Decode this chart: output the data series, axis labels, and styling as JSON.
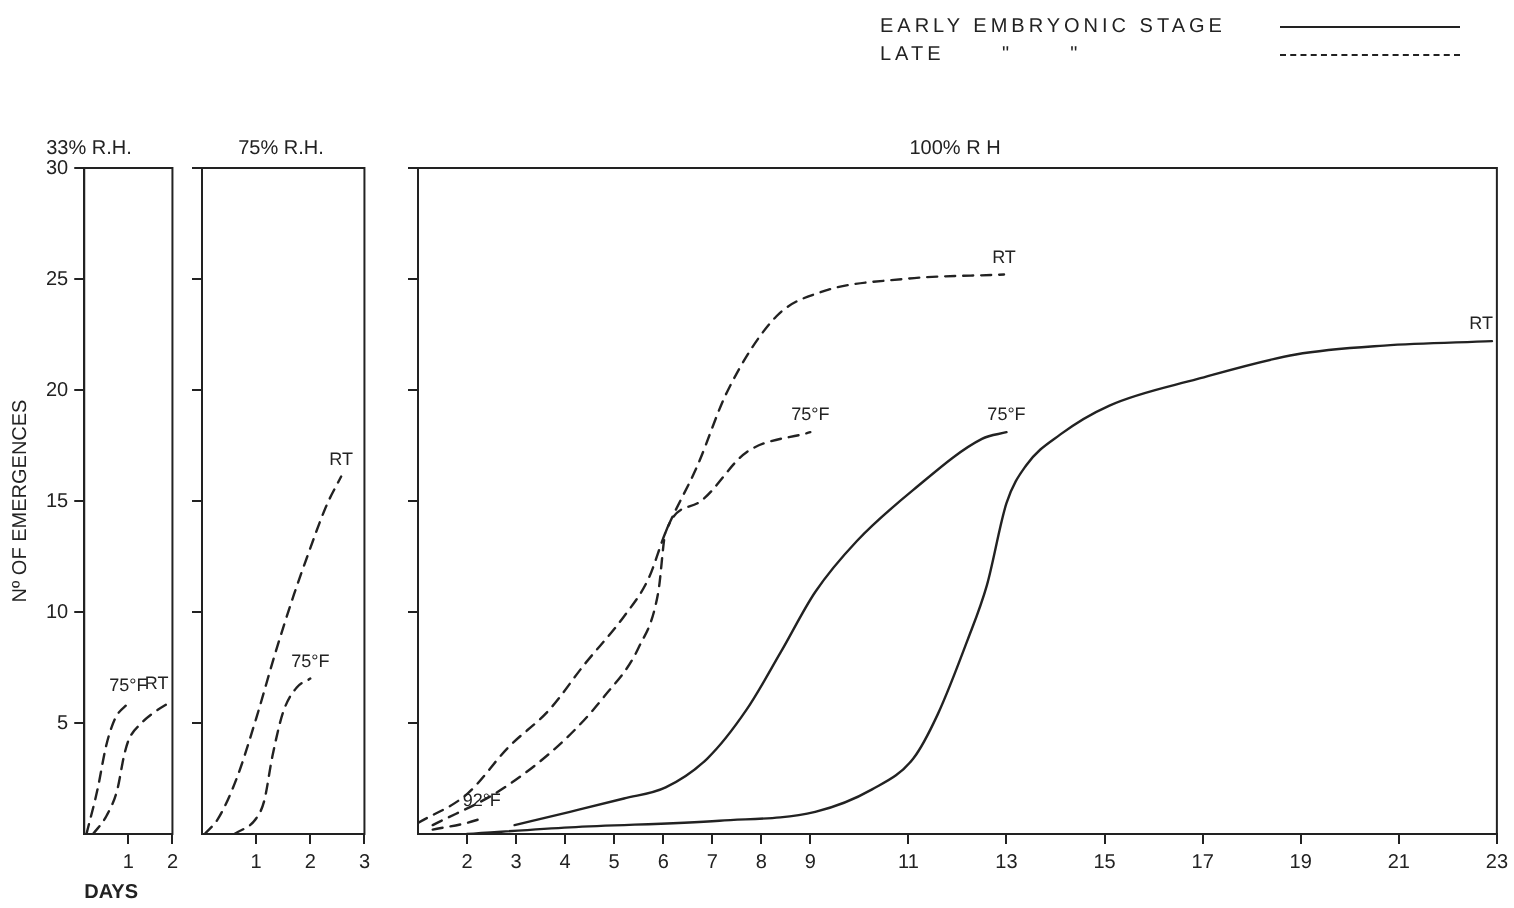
{
  "chart_data": [
    {
      "type": "line",
      "title": "33% R.H.",
      "xlabel": "DAYS",
      "ylabel": "Nº OF EMERGENCES",
      "xlim": [
        0,
        2
      ],
      "xticks": [
        1,
        2
      ],
      "ylim": [
        0,
        30
      ],
      "yticks": [
        5,
        10,
        15,
        20,
        25,
        30
      ],
      "grid": false,
      "legend": false,
      "series": [
        {
          "name": "75°F",
          "color": "#222222",
          "line_style": "dashed",
          "x": [
            0.05,
            0.3,
            0.5,
            0.7,
            1.0
          ],
          "values": [
            0,
            2,
            4,
            5.2,
            5.9
          ]
        },
        {
          "name": "RT",
          "color": "#222222",
          "line_style": "dashed",
          "x": [
            0.2,
            0.5,
            0.75,
            0.9,
            1.0,
            1.3,
            1.6,
            2.0
          ],
          "values": [
            0,
            0.8,
            2,
            3.5,
            4.2,
            5.0,
            5.5,
            6.0
          ]
        }
      ]
    },
    {
      "type": "line",
      "title": "75% R.H.",
      "xlim": [
        0,
        3
      ],
      "xticks": [
        1,
        2,
        3
      ],
      "ylim": [
        0,
        30
      ],
      "yticks": [
        5,
        10,
        15,
        20,
        25,
        30
      ],
      "tick_labels": "x",
      "grid": false,
      "legend": false,
      "series": [
        {
          "name": "RT",
          "color": "#222222",
          "line_style": "dashed",
          "x": [
            0.05,
            0.3,
            0.64,
            1.0,
            1.36,
            1.7,
            1.93,
            2.3,
            2.57
          ],
          "values": [
            0,
            0.7,
            2.5,
            5.2,
            8.2,
            10.8,
            12.4,
            14.8,
            16.1
          ]
        },
        {
          "name": "75°F",
          "color": "#222222",
          "line_style": "dashed",
          "x": [
            0.6,
            1.0,
            1.15,
            1.3,
            1.5,
            1.75,
            2.0
          ],
          "values": [
            0,
            0.7,
            1.5,
            3.5,
            5.5,
            6.6,
            7.0
          ]
        }
      ]
    },
    {
      "type": "line",
      "title": "100% R H",
      "xlim": [
        1,
        23
      ],
      "xticks": [
        2,
        3,
        4,
        5,
        6,
        7,
        8,
        9,
        11,
        13,
        15,
        17,
        19,
        21,
        23
      ],
      "ylim": [
        0,
        30
      ],
      "yticks": [
        5,
        10,
        15,
        20,
        25,
        30
      ],
      "tick_labels": "x",
      "grid": false,
      "legend": false,
      "annotations": [
        "EARLY EMBRYONIC STAGE",
        "LATE      \"      \""
      ],
      "series": [
        {
          "name": "RT",
          "color": "#222222",
          "line_style": "dashed",
          "x": [
            1.0,
            2.0,
            2.84,
            3.68,
            4.38,
            5.2,
            5.7,
            6.05,
            6.7,
            7.3,
            8.3,
            9.2,
            10.9,
            12.95
          ],
          "values": [
            0.5,
            1.8,
            3.9,
            5.6,
            7.6,
            9.8,
            11.5,
            13.6,
            16.6,
            19.9,
            23.3,
            24.4,
            25.0,
            25.2
          ]
        },
        {
          "name": "75°F",
          "color": "#222222",
          "line_style": "dashed",
          "x": [
            1.3,
            2.7,
            3.97,
            4.8,
            5.5,
            5.9,
            6.05,
            6.7,
            7.7,
            9.0
          ],
          "values": [
            0.4,
            2.0,
            4.2,
            6.2,
            8.4,
            10.9,
            13.6,
            14.9,
            17.2,
            18.1
          ]
        },
        {
          "name": "92°F",
          "color": "#222222",
          "line_style": "dashed",
          "x": [
            1.3,
            2.0,
            2.3
          ],
          "values": [
            0.2,
            0.5,
            0.7
          ]
        },
        {
          "name": "75°F",
          "color": "#222222",
          "line_style": "solid",
          "x": [
            2.97,
            4.1,
            5.2,
            6.05,
            6.9,
            7.7,
            8.4,
            9.1,
            9.95,
            11.1,
            12.5,
            13.0
          ],
          "values": [
            0.4,
            1.0,
            1.6,
            2.1,
            3.4,
            5.6,
            8.2,
            10.9,
            13.2,
            15.5,
            17.8,
            18.1
          ]
        },
        {
          "name": "RT",
          "color": "#222222",
          "line_style": "solid",
          "x": [
            2.0,
            4.1,
            7.15,
            9.1,
            10.25,
            11.1,
            11.6,
            12.2,
            12.6,
            13.0,
            13.4,
            14.1,
            15.1,
            16.9,
            18.9,
            20.7,
            22.9
          ],
          "values": [
            0,
            0.3,
            0.6,
            1.0,
            2.0,
            3.4,
            5.4,
            8.7,
            11.2,
            14.9,
            16.6,
            18.0,
            19.3,
            20.5,
            21.6,
            22.0,
            22.2
          ]
        }
      ]
    }
  ]
}
